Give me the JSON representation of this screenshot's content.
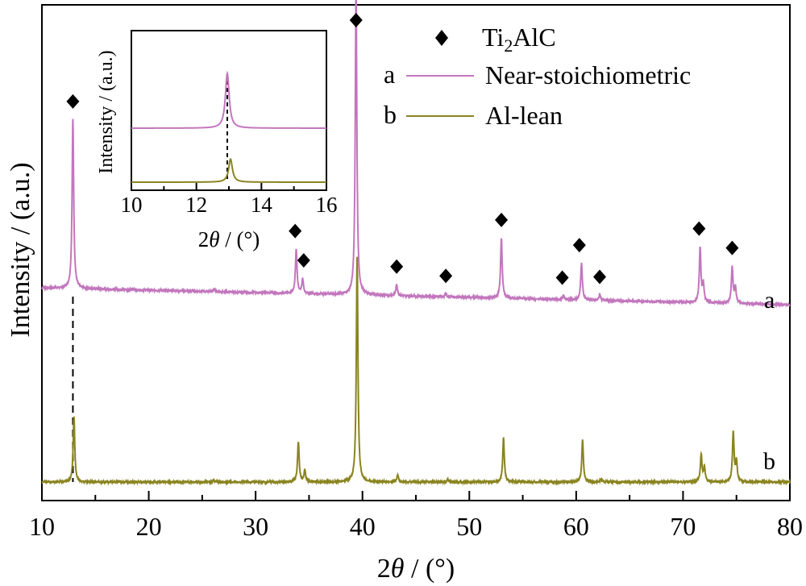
{
  "chart_data": [
    {
      "id": "main",
      "type": "line",
      "xlabel_prefix": "2",
      "xlabel_theta": "θ",
      "xlabel_suffix": " / (°)",
      "ylabel": "Intensity / (a.u.)",
      "xlim": [
        10,
        80
      ],
      "xticks": [
        10,
        20,
        30,
        40,
        50,
        60,
        70,
        80
      ],
      "xtick_labels": [
        "10",
        "20",
        "30",
        "40",
        "50",
        "60",
        "70",
        "80"
      ],
      "yticks_shown": false,
      "grid": false,
      "dashed_reference_x": 12.9,
      "legend": {
        "placement": "top-right",
        "marker_label_main": "Ti",
        "marker_label_sub": "2",
        "marker_label_rest": "AlC",
        "entries": [
          {
            "letter": "a",
            "name": "Near-stoichiometric",
            "color": "#c276bd"
          },
          {
            "letter": "b",
            "name": "Al-lean",
            "color": "#8a8420"
          }
        ]
      },
      "series": [
        {
          "name": "Near-stoichiometric",
          "label": "a",
          "color": "#c276bd",
          "baseline_start": 0.31,
          "baseline_end": 0.1,
          "peaks": [
            {
              "x": 12.9,
              "h": 2.1
            },
            {
              "x": 26.1,
              "h": 0.03
            },
            {
              "x": 33.8,
              "h": 0.55
            },
            {
              "x": 34.4,
              "h": 0.18
            },
            {
              "x": 39.4,
              "h": 3.82
            },
            {
              "x": 43.2,
              "h": 0.14
            },
            {
              "x": 47.8,
              "h": 0.04
            },
            {
              "x": 53.0,
              "h": 0.75
            },
            {
              "x": 58.8,
              "h": 0.05
            },
            {
              "x": 60.5,
              "h": 0.46
            },
            {
              "x": 62.2,
              "h": 0.07
            },
            {
              "x": 71.6,
              "h": 0.68
            },
            {
              "x": 71.9,
              "h": 0.22
            },
            {
              "x": 74.6,
              "h": 0.45
            },
            {
              "x": 74.9,
              "h": 0.2
            }
          ],
          "markers_x": [
            12.9,
            33.7,
            34.5,
            43.2,
            47.8,
            53.0,
            58.7,
            60.3,
            62.2,
            71.5,
            74.6
          ]
        },
        {
          "name": "Al-lean",
          "label": "b",
          "color": "#8a8420",
          "baseline_start": 0.0,
          "baseline_end": 0.0,
          "peaks": [
            {
              "x": 13.0,
              "h": 0.82
            },
            {
              "x": 26.1,
              "h": 0.02
            },
            {
              "x": 34.0,
              "h": 0.5
            },
            {
              "x": 34.6,
              "h": 0.15
            },
            {
              "x": 39.5,
              "h": 2.8
            },
            {
              "x": 43.3,
              "h": 0.09
            },
            {
              "x": 48.0,
              "h": 0.03
            },
            {
              "x": 53.2,
              "h": 0.55
            },
            {
              "x": 60.6,
              "h": 0.52
            },
            {
              "x": 62.3,
              "h": 0.04
            },
            {
              "x": 71.7,
              "h": 0.34
            },
            {
              "x": 72.0,
              "h": 0.18
            },
            {
              "x": 74.7,
              "h": 0.62
            },
            {
              "x": 75.0,
              "h": 0.25
            }
          ]
        }
      ]
    },
    {
      "id": "inset",
      "type": "line",
      "xlabel_prefix": "2",
      "xlabel_theta": "θ",
      "xlabel_suffix": " / (°)",
      "ylabel": "Intensity / (a.u.)",
      "xlim": [
        10,
        16
      ],
      "xticks": [
        10,
        12,
        14,
        16
      ],
      "xtick_labels": [
        "10",
        "12",
        "14",
        "16"
      ],
      "dashed_reference_x": 12.95,
      "series": [
        {
          "name": "Near-stoichiometric",
          "color": "#c276bd",
          "peak_x": 12.95,
          "peak_h": 1.0
        },
        {
          "name": "Al-lean",
          "color": "#8a8420",
          "peak_x": 13.05,
          "peak_h": 0.42
        }
      ]
    }
  ]
}
